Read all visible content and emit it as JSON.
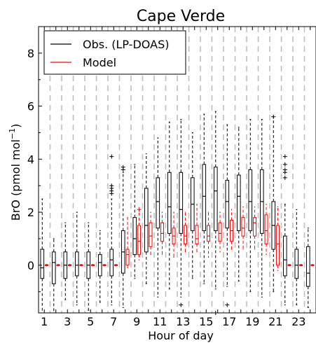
{
  "chart_data": {
    "type": "boxplot",
    "title": "Cape Verde",
    "xlabel": "Hour of day",
    "ylabel_main": "BrO (pmol mol",
    "ylabel_sup": "−1",
    "ylabel_close": ")",
    "xlim": [
      0.5,
      24.5
    ],
    "ylim": [
      -1.8,
      9.0
    ],
    "xticks": [
      1,
      3,
      5,
      7,
      9,
      11,
      13,
      15,
      17,
      19,
      21,
      23
    ],
    "xtick_labels": [
      "1",
      "3",
      "5",
      "7",
      "9",
      "11",
      "13",
      "15",
      "17",
      "19",
      "21",
      "23"
    ],
    "yticks": [
      0,
      2,
      4,
      6,
      8
    ],
    "ytick_labels": [
      "0",
      "2",
      "4",
      "6",
      "8"
    ],
    "grid": "vertical dashed at hour boundaries",
    "legend": {
      "placement": "top-left",
      "entries": [
        "Obs. (LP-DOAS)",
        "Model"
      ]
    },
    "colors": {
      "obs": "#000000",
      "model": "#ff0000",
      "grid": "#c0c0c0"
    },
    "series": [
      {
        "name": "Obs. (LP-DOAS)",
        "boxes": [
          {
            "hour": 1,
            "whislo": -1.8,
            "q1": -0.5,
            "med": -0.1,
            "q3": 0.6,
            "whishi": 2.5,
            "fliers": []
          },
          {
            "hour": 2,
            "whislo": -1.8,
            "q1": -0.7,
            "med": 0.1,
            "q3": 0.5,
            "whishi": 1.0,
            "fliers": []
          },
          {
            "hour": 3,
            "whislo": -1.3,
            "q1": -0.5,
            "med": 0.0,
            "q3": 0.5,
            "whishi": 1.6,
            "fliers": []
          },
          {
            "hour": 4,
            "whislo": -1.5,
            "q1": -0.4,
            "med": 0.0,
            "q3": 0.5,
            "whishi": 2.0,
            "fliers": []
          },
          {
            "hour": 5,
            "whislo": -1.7,
            "q1": -0.5,
            "med": 0.0,
            "q3": 0.5,
            "whishi": 1.6,
            "fliers": []
          },
          {
            "hour": 6,
            "whislo": -1.4,
            "q1": -0.4,
            "med": 0.1,
            "q3": 0.4,
            "whishi": 1.3,
            "fliers": []
          },
          {
            "hour": 7,
            "whislo": -1.5,
            "q1": -0.4,
            "med": 0.2,
            "q3": 0.6,
            "whishi": 2.5,
            "fliers": [
              4.1,
              3.0,
              2.9,
              2.8,
              2.7
            ]
          },
          {
            "hour": 8,
            "whislo": -1.6,
            "q1": -0.3,
            "med": 0.5,
            "q3": 1.3,
            "whishi": 3.5,
            "fliers": [
              3.7,
              3.6
            ]
          },
          {
            "hour": 9,
            "whislo": -0.5,
            "q1": 0.4,
            "med": 1.0,
            "q3": 1.8,
            "whishi": 3.8,
            "fliers": []
          },
          {
            "hour": 10,
            "whislo": -0.7,
            "q1": 0.5,
            "med": 1.5,
            "q3": 2.9,
            "whishi": 4.2,
            "fliers": []
          },
          {
            "hour": 11,
            "whislo": -1.2,
            "q1": 1.4,
            "med": 2.4,
            "q3": 3.3,
            "whishi": 4.8,
            "fliers": []
          },
          {
            "hour": 12,
            "whislo": -0.9,
            "q1": 1.2,
            "med": 2.2,
            "q3": 3.5,
            "whishi": 5.4,
            "fliers": []
          },
          {
            "hour": 13,
            "whislo": -1.2,
            "q1": 1.2,
            "med": 2.1,
            "q3": 3.5,
            "whishi": 5.5,
            "fliers": [
              -1.5
            ]
          },
          {
            "hour": 14,
            "whislo": -0.5,
            "q1": 1.3,
            "med": 2.3,
            "q3": 3.3,
            "whishi": 5.0,
            "fliers": []
          },
          {
            "hour": 15,
            "whislo": -0.7,
            "q1": 1.3,
            "med": 2.6,
            "q3": 3.8,
            "whishi": 5.7,
            "fliers": []
          },
          {
            "hour": 16,
            "whislo": -0.9,
            "q1": 1.3,
            "med": 2.8,
            "q3": 3.7,
            "whishi": 5.8,
            "fliers": [
              -1.8
            ]
          },
          {
            "hour": 17,
            "whislo": -0.8,
            "q1": 1.4,
            "med": 2.4,
            "q3": 3.2,
            "whishi": 5.3,
            "fliers": [
              -1.5
            ]
          },
          {
            "hour": 18,
            "whislo": -0.6,
            "q1": 1.3,
            "med": 2.6,
            "q3": 3.4,
            "whishi": 5.2,
            "fliers": []
          },
          {
            "hour": 19,
            "whislo": -1.0,
            "q1": 1.3,
            "med": 2.4,
            "q3": 3.6,
            "whishi": 5.5,
            "fliers": []
          },
          {
            "hour": 20,
            "whislo": -1.2,
            "q1": 1.2,
            "med": 2.4,
            "q3": 3.6,
            "whishi": 5.5,
            "fliers": []
          },
          {
            "hour": 21,
            "whislo": -1.0,
            "q1": 0.6,
            "med": 1.5,
            "q3": 2.4,
            "whishi": 5.6,
            "fliers": [
              5.6
            ]
          },
          {
            "hour": 22,
            "whislo": -1.5,
            "q1": -0.4,
            "med": 0.2,
            "q3": 1.1,
            "whishi": 2.3,
            "fliers": [
              4.1,
              3.8,
              3.6,
              3.5,
              3.3
            ]
          },
          {
            "hour": 23,
            "whislo": -1.5,
            "q1": -0.5,
            "med": 0.0,
            "q3": 0.6,
            "whishi": 2.1,
            "fliers": []
          },
          {
            "hour": 24,
            "whislo": -1.6,
            "q1": -0.8,
            "med": -0.3,
            "q3": 0.7,
            "whishi": 1.4,
            "fliers": []
          }
        ]
      },
      {
        "name": "Model",
        "boxes": [
          {
            "hour": 1,
            "whislo": -0.03,
            "q1": -0.02,
            "med": 0.0,
            "q3": 0.02,
            "whishi": 0.03,
            "fliers": []
          },
          {
            "hour": 2,
            "whislo": -0.03,
            "q1": -0.02,
            "med": 0.0,
            "q3": 0.02,
            "whishi": 0.03,
            "fliers": []
          },
          {
            "hour": 3,
            "whislo": -0.03,
            "q1": -0.02,
            "med": 0.0,
            "q3": 0.02,
            "whishi": 0.03,
            "fliers": []
          },
          {
            "hour": 4,
            "whislo": -0.03,
            "q1": -0.02,
            "med": 0.0,
            "q3": 0.02,
            "whishi": 0.03,
            "fliers": []
          },
          {
            "hour": 5,
            "whislo": -0.03,
            "q1": -0.02,
            "med": 0.0,
            "q3": 0.02,
            "whishi": 0.03,
            "fliers": []
          },
          {
            "hour": 6,
            "whislo": -0.03,
            "q1": -0.02,
            "med": 0.0,
            "q3": 0.02,
            "whishi": 0.03,
            "fliers": []
          },
          {
            "hour": 7,
            "whislo": -0.03,
            "q1": -0.02,
            "med": 0.0,
            "q3": 0.02,
            "whishi": 0.03,
            "fliers": []
          },
          {
            "hour": 8,
            "whislo": -0.1,
            "q1": 0.0,
            "med": 0.4,
            "q3": 0.6,
            "whishi": 1.8,
            "fliers": []
          },
          {
            "hour": 9,
            "whislo": 0.2,
            "q1": 0.4,
            "med": 0.9,
            "q3": 1.5,
            "whishi": 2.1,
            "fliers": [
              2.1
            ]
          },
          {
            "hour": 10,
            "whislo": 0.4,
            "q1": 0.7,
            "med": 1.1,
            "q3": 1.6,
            "whishi": 2.0,
            "fliers": []
          },
          {
            "hour": 11,
            "whislo": 0.4,
            "q1": 0.9,
            "med": 1.2,
            "q3": 1.6,
            "whishi": 2.0,
            "fliers": []
          },
          {
            "hour": 12,
            "whislo": 0.3,
            "q1": 0.8,
            "med": 1.1,
            "q3": 1.4,
            "whishi": 2.0,
            "fliers": []
          },
          {
            "hour": 13,
            "whislo": 0.5,
            "q1": 0.8,
            "med": 1.1,
            "q3": 1.5,
            "whishi": 2.0,
            "fliers": []
          },
          {
            "hour": 14,
            "whislo": 0.5,
            "q1": 0.8,
            "med": 1.0,
            "q3": 1.5,
            "whishi": 2.3,
            "fliers": []
          },
          {
            "hour": 15,
            "whislo": 0.3,
            "q1": 0.9,
            "med": 1.1,
            "q3": 1.5,
            "whishi": 2.0,
            "fliers": []
          },
          {
            "hour": 16,
            "whislo": 0.5,
            "q1": 0.9,
            "med": 1.2,
            "q3": 1.6,
            "whishi": 2.0,
            "fliers": []
          },
          {
            "hour": 17,
            "whislo": 0.6,
            "q1": 0.9,
            "med": 1.3,
            "q3": 1.7,
            "whishi": 2.1,
            "fliers": []
          },
          {
            "hour": 18,
            "whislo": 0.6,
            "q1": 1.1,
            "med": 1.4,
            "q3": 1.8,
            "whishi": 2.2,
            "fliers": []
          },
          {
            "hour": 19,
            "whislo": 0.6,
            "q1": 1.1,
            "med": 1.6,
            "q3": 1.8,
            "whishi": 2.2,
            "fliers": []
          },
          {
            "hour": 20,
            "whislo": 0.4,
            "q1": 0.8,
            "med": 1.3,
            "q3": 1.9,
            "whishi": 2.3,
            "fliers": []
          },
          {
            "hour": 21,
            "whislo": -0.2,
            "q1": 0.0,
            "med": 0.8,
            "q3": 1.5,
            "whishi": 2.2,
            "fliers": []
          },
          {
            "hour": 22,
            "whislo": -0.03,
            "q1": -0.02,
            "med": 0.0,
            "q3": 0.02,
            "whishi": 0.03,
            "fliers": []
          },
          {
            "hour": 23,
            "whislo": -0.03,
            "q1": -0.02,
            "med": 0.0,
            "q3": 0.02,
            "whishi": 0.03,
            "fliers": []
          },
          {
            "hour": 24,
            "whislo": -0.03,
            "q1": -0.02,
            "med": 0.0,
            "q3": 0.02,
            "whishi": 0.03,
            "fliers": []
          }
        ]
      }
    ]
  }
}
